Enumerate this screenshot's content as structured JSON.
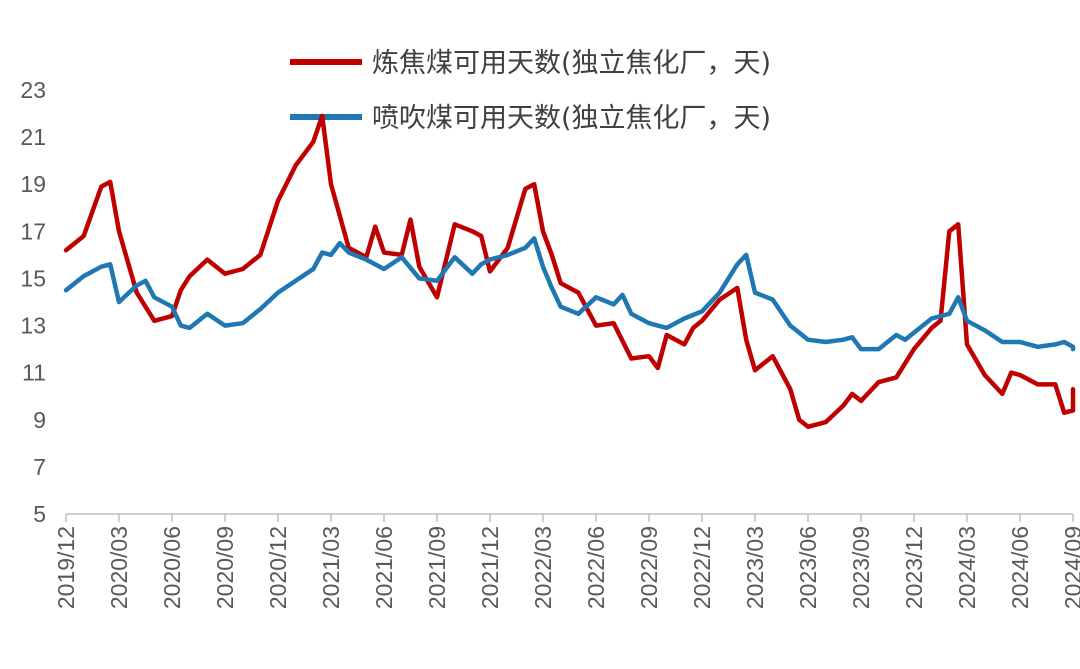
{
  "chart_data": {
    "type": "line",
    "title": "",
    "xlabel": "",
    "ylabel": "",
    "ylim": [
      5,
      23
    ],
    "yticks": [
      5,
      7,
      9,
      11,
      13,
      15,
      17,
      19,
      21,
      23
    ],
    "xticks": [
      "2019/12",
      "2020/03",
      "2020/06",
      "2020/09",
      "2020/12",
      "2021/03",
      "2021/06",
      "2021/09",
      "2021/12",
      "2022/03",
      "2022/06",
      "2022/09",
      "2022/12",
      "2023/03",
      "2023/06",
      "2023/09",
      "2023/12",
      "2024/03",
      "2024/06",
      "2024/09"
    ],
    "legend_position": "top-center",
    "grid": false,
    "series": [
      {
        "name": "炼焦煤可用天数(独立焦化厂，天)",
        "color": "#c00000",
        "points": [
          [
            "2019/12",
            16.2
          ],
          [
            "2020/01",
            16.8
          ],
          [
            "2020/02",
            18.9
          ],
          [
            "2020/02",
            19.1
          ],
          [
            "2020/03",
            17.0
          ],
          [
            "2020/04",
            14.4
          ],
          [
            "2020/05",
            13.2
          ],
          [
            "2020/06",
            13.4
          ],
          [
            "2020/06",
            14.5
          ],
          [
            "2020/07",
            15.1
          ],
          [
            "2020/08",
            15.8
          ],
          [
            "2020/09",
            15.2
          ],
          [
            "2020/10",
            15.4
          ],
          [
            "2020/11",
            16.0
          ],
          [
            "2020/12",
            18.3
          ],
          [
            "2021/01",
            19.8
          ],
          [
            "2021/02",
            20.8
          ],
          [
            "2021/02",
            21.9
          ],
          [
            "2021/03",
            19.0
          ],
          [
            "2021/04",
            16.3
          ],
          [
            "2021/05",
            15.9
          ],
          [
            "2021/05",
            17.2
          ],
          [
            "2021/06",
            16.1
          ],
          [
            "2021/07",
            16.0
          ],
          [
            "2021/07",
            17.5
          ],
          [
            "2021/08",
            15.5
          ],
          [
            "2021/09",
            14.2
          ],
          [
            "2021/10",
            17.3
          ],
          [
            "2021/11",
            17.0
          ],
          [
            "2021/11",
            16.8
          ],
          [
            "2021/12",
            15.3
          ],
          [
            "2022/01",
            16.3
          ],
          [
            "2022/02",
            18.8
          ],
          [
            "2022/02",
            19.0
          ],
          [
            "2022/03",
            17.0
          ],
          [
            "2022/03",
            16.0
          ],
          [
            "2022/04",
            14.8
          ],
          [
            "2022/05",
            14.4
          ],
          [
            "2022/06",
            13.0
          ],
          [
            "2022/07",
            13.1
          ],
          [
            "2022/08",
            11.6
          ],
          [
            "2022/09",
            11.7
          ],
          [
            "2022/09",
            11.2
          ],
          [
            "2022/10",
            12.6
          ],
          [
            "2022/11",
            12.2
          ],
          [
            "2022/11",
            12.9
          ],
          [
            "2022/12",
            13.2
          ],
          [
            "2023/01",
            14.1
          ],
          [
            "2023/02",
            14.6
          ],
          [
            "2023/02",
            12.4
          ],
          [
            "2023/03",
            11.1
          ],
          [
            "2023/04",
            11.7
          ],
          [
            "2023/05",
            10.3
          ],
          [
            "2023/05",
            9.0
          ],
          [
            "2023/06",
            8.7
          ],
          [
            "2023/07",
            8.9
          ],
          [
            "2023/08",
            9.6
          ],
          [
            "2023/08",
            10.1
          ],
          [
            "2023/09",
            9.8
          ],
          [
            "2023/10",
            10.6
          ],
          [
            "2023/11",
            10.8
          ],
          [
            "2023/12",
            12.0
          ],
          [
            "2024/01",
            12.9
          ],
          [
            "2024/01",
            13.2
          ],
          [
            "2024/02",
            17.0
          ],
          [
            "2024/02",
            17.3
          ],
          [
            "2024/03",
            12.2
          ],
          [
            "2024/04",
            10.9
          ],
          [
            "2024/05",
            10.1
          ],
          [
            "2024/05",
            11.0
          ],
          [
            "2024/06",
            10.9
          ],
          [
            "2024/07",
            10.5
          ],
          [
            "2024/08",
            10.5
          ],
          [
            "2024/08",
            9.3
          ],
          [
            "2024/09",
            9.4
          ],
          [
            "2024/09",
            10.3
          ]
        ]
      },
      {
        "name": "喷吹煤可用天数(独立焦化厂，天)",
        "color": "#1f77b4",
        "points": [
          [
            "2019/12",
            14.5
          ],
          [
            "2020/01",
            15.1
          ],
          [
            "2020/02",
            15.5
          ],
          [
            "2020/02",
            15.6
          ],
          [
            "2020/03",
            14.0
          ],
          [
            "2020/04",
            14.7
          ],
          [
            "2020/04",
            14.9
          ],
          [
            "2020/05",
            14.2
          ],
          [
            "2020/06",
            13.8
          ],
          [
            "2020/06",
            13.0
          ],
          [
            "2020/07",
            12.9
          ],
          [
            "2020/08",
            13.5
          ],
          [
            "2020/09",
            13.0
          ],
          [
            "2020/10",
            13.1
          ],
          [
            "2020/11",
            13.7
          ],
          [
            "2020/12",
            14.4
          ],
          [
            "2021/01",
            14.9
          ],
          [
            "2021/02",
            15.4
          ],
          [
            "2021/02",
            16.1
          ],
          [
            "2021/03",
            16.0
          ],
          [
            "2021/03",
            16.5
          ],
          [
            "2021/04",
            16.1
          ],
          [
            "2021/05",
            15.8
          ],
          [
            "2021/06",
            15.4
          ],
          [
            "2021/07",
            15.9
          ],
          [
            "2021/08",
            15.0
          ],
          [
            "2021/09",
            14.9
          ],
          [
            "2021/10",
            15.9
          ],
          [
            "2021/11",
            15.2
          ],
          [
            "2021/11",
            15.6
          ],
          [
            "2021/12",
            15.8
          ],
          [
            "2022/01",
            16.0
          ],
          [
            "2022/02",
            16.3
          ],
          [
            "2022/02",
            16.7
          ],
          [
            "2022/03",
            15.5
          ],
          [
            "2022/03",
            14.6
          ],
          [
            "2022/04",
            13.8
          ],
          [
            "2022/05",
            13.5
          ],
          [
            "2022/06",
            14.2
          ],
          [
            "2022/07",
            13.9
          ],
          [
            "2022/07",
            14.3
          ],
          [
            "2022/08",
            13.5
          ],
          [
            "2022/09",
            13.1
          ],
          [
            "2022/10",
            12.9
          ],
          [
            "2022/11",
            13.3
          ],
          [
            "2022/12",
            13.6
          ],
          [
            "2023/01",
            14.4
          ],
          [
            "2023/02",
            15.6
          ],
          [
            "2023/02",
            16.0
          ],
          [
            "2023/03",
            14.4
          ],
          [
            "2023/04",
            14.1
          ],
          [
            "2023/05",
            13.0
          ],
          [
            "2023/05",
            12.7
          ],
          [
            "2023/06",
            12.4
          ],
          [
            "2023/07",
            12.3
          ],
          [
            "2023/08",
            12.4
          ],
          [
            "2023/08",
            12.5
          ],
          [
            "2023/09",
            12.0
          ],
          [
            "2023/10",
            12.0
          ],
          [
            "2023/11",
            12.6
          ],
          [
            "2023/11",
            12.4
          ],
          [
            "2023/12",
            12.7
          ],
          [
            "2024/01",
            13.3
          ],
          [
            "2024/02",
            13.5
          ],
          [
            "2024/02",
            14.2
          ],
          [
            "2024/03",
            13.2
          ],
          [
            "2024/04",
            12.8
          ],
          [
            "2024/05",
            12.3
          ],
          [
            "2024/06",
            12.3
          ],
          [
            "2024/07",
            12.1
          ],
          [
            "2024/08",
            12.2
          ],
          [
            "2024/08",
            12.3
          ],
          [
            "2024/09",
            12.1
          ],
          [
            "2024/09",
            12.0
          ]
        ]
      }
    ]
  }
}
